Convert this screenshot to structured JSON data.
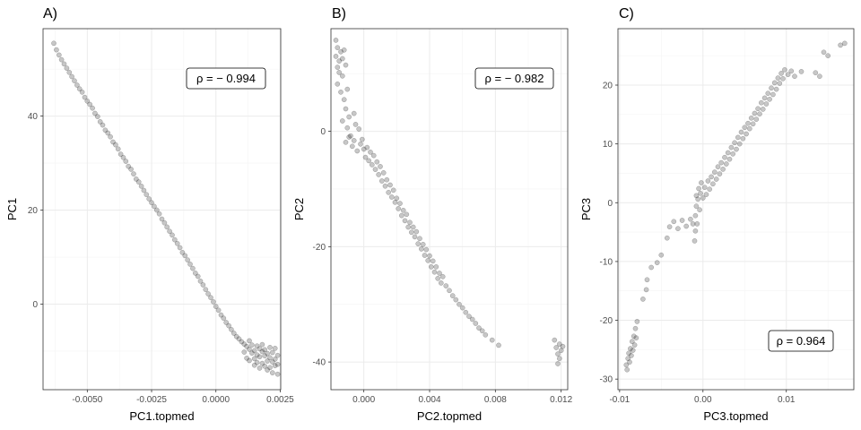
{
  "chart_data": [
    {
      "type": "scatter",
      "panel_label": "A)",
      "xlabel": "PC1.topmed",
      "ylabel": "PC1",
      "xlim": [
        -0.00672,
        0.00252
      ],
      "ylim": [
        -18.2,
        58.6
      ],
      "xticks": [
        -0.005,
        -0.0025,
        0.0,
        0.0025
      ],
      "xtick_labels": [
        "-0.0050",
        "-0.0025",
        "0.0000",
        "0.0025"
      ],
      "yticks": [
        0,
        20,
        40
      ],
      "ytick_labels": [
        "0",
        "20",
        "40"
      ],
      "grid": true,
      "annotation": "ρ = − 0.994",
      "annotation_position": "top-right",
      "points": [
        [
          -0.0063,
          55.5
        ],
        [
          -0.0062,
          54.1
        ],
        [
          -0.0061,
          53.0
        ],
        [
          -0.006,
          52.0
        ],
        [
          -0.0059,
          51.1
        ],
        [
          -0.0058,
          50.2
        ],
        [
          -0.0057,
          49.3
        ],
        [
          -0.0056,
          48.4
        ],
        [
          -0.0055,
          47.5
        ],
        [
          -0.0054,
          46.6
        ],
        [
          -0.0053,
          45.8
        ],
        [
          -0.0052,
          45.1
        ],
        [
          -0.0051,
          44.0
        ],
        [
          -0.005,
          43.2
        ],
        [
          -0.0049,
          42.5
        ],
        [
          -0.0048,
          41.7
        ],
        [
          -0.0047,
          40.6
        ],
        [
          -0.0046,
          39.9
        ],
        [
          -0.0045,
          38.8
        ],
        [
          -0.0044,
          38.1
        ],
        [
          -0.0043,
          37.0
        ],
        [
          -0.0042,
          36.4
        ],
        [
          -0.0041,
          35.6
        ],
        [
          -0.004,
          34.5
        ],
        [
          -0.0039,
          33.9
        ],
        [
          -0.0038,
          33.0
        ],
        [
          -0.0037,
          31.9
        ],
        [
          -0.0036,
          31.2
        ],
        [
          -0.0035,
          30.4
        ],
        [
          -0.0034,
          29.3
        ],
        [
          -0.0033,
          28.7
        ],
        [
          -0.0032,
          27.7
        ],
        [
          -0.0031,
          26.6
        ],
        [
          -0.003,
          26.0
        ],
        [
          -0.0029,
          25.1
        ],
        [
          -0.0028,
          24.2
        ],
        [
          -0.0027,
          23.3
        ],
        [
          -0.0026,
          22.4
        ],
        [
          -0.0025,
          21.6
        ],
        [
          -0.0024,
          20.8
        ],
        [
          -0.0023,
          20.0
        ],
        [
          -0.0022,
          19.2
        ],
        [
          -0.0021,
          18.1
        ],
        [
          -0.002,
          17.3
        ],
        [
          -0.0019,
          16.4
        ],
        [
          -0.0018,
          15.5
        ],
        [
          -0.0017,
          14.7
        ],
        [
          -0.0016,
          13.7
        ],
        [
          -0.0015,
          12.9
        ],
        [
          -0.0014,
          12.0
        ],
        [
          -0.0013,
          11.0
        ],
        [
          -0.0012,
          10.3
        ],
        [
          -0.0011,
          9.4
        ],
        [
          -0.001,
          8.5
        ],
        [
          -0.0009,
          7.6
        ],
        [
          -0.0008,
          6.6
        ],
        [
          -0.0007,
          5.9
        ],
        [
          -0.0006,
          4.9
        ],
        [
          -0.0005,
          4.1
        ],
        [
          -0.0004,
          3.1
        ],
        [
          -0.0003,
          2.2
        ],
        [
          -0.0002,
          1.4
        ],
        [
          -0.0001,
          0.5
        ],
        [
          0.0,
          -0.5
        ],
        [
          0.0001,
          -1.3
        ],
        [
          0.0002,
          -2.3
        ],
        [
          0.0003,
          -3.0
        ],
        [
          0.0004,
          -3.9
        ],
        [
          0.0005,
          -4.6
        ],
        [
          0.0006,
          -5.4
        ],
        [
          0.0007,
          -6.2
        ],
        [
          0.0008,
          -6.9
        ],
        [
          0.0009,
          -7.4
        ],
        [
          0.001,
          -8.0
        ],
        [
          0.0011,
          -8.5
        ],
        [
          0.0011,
          -10.2
        ],
        [
          0.0012,
          -9.0
        ],
        [
          0.0012,
          -11.5
        ],
        [
          0.0013,
          -7.8
        ],
        [
          0.0013,
          -9.6
        ],
        [
          0.0013,
          -12.0
        ],
        [
          0.0014,
          -10.4
        ],
        [
          0.0014,
          -8.7
        ],
        [
          0.0015,
          -11.6
        ],
        [
          0.0015,
          -9.9
        ],
        [
          0.0015,
          -13.0
        ],
        [
          0.0016,
          -10.8
        ],
        [
          0.0016,
          -8.9
        ],
        [
          0.0016,
          -12.4
        ],
        [
          0.0017,
          -9.5
        ],
        [
          0.0017,
          -11.2
        ],
        [
          0.0017,
          -13.6
        ],
        [
          0.0018,
          -10.1
        ],
        [
          0.0018,
          -12.6
        ],
        [
          0.0018,
          -8.6
        ],
        [
          0.0019,
          -11.0
        ],
        [
          0.0019,
          -13.2
        ],
        [
          0.0019,
          -9.7
        ],
        [
          0.002,
          -12.1
        ],
        [
          0.002,
          -10.5
        ],
        [
          0.002,
          -14.0
        ],
        [
          0.0021,
          -11.4
        ],
        [
          0.0021,
          -9.2
        ],
        [
          0.0021,
          -13.5
        ],
        [
          0.0022,
          -12.3
        ],
        [
          0.0022,
          -10.3
        ],
        [
          0.0022,
          -14.6
        ],
        [
          0.0023,
          -11.7
        ],
        [
          0.0023,
          -13.1
        ],
        [
          0.0023,
          -9.4
        ],
        [
          0.0024,
          -12.8
        ],
        [
          0.0024,
          -10.9
        ],
        [
          0.0024,
          -14.9
        ]
      ]
    },
    {
      "type": "scatter",
      "panel_label": "B)",
      "xlabel": "PC2.topmed",
      "ylabel": "PC2",
      "xlim": [
        -0.002,
        0.0124
      ],
      "ylim": [
        -44.8,
        17.8
      ],
      "xticks": [
        0.0,
        0.004,
        0.008,
        0.012
      ],
      "xtick_labels": [
        "0.000",
        "0.004",
        "0.008",
        "0.012"
      ],
      "yticks": [
        -40,
        -20,
        0
      ],
      "ytick_labels": [
        "-40",
        "-20",
        "0"
      ],
      "grid": true,
      "annotation": "ρ = − 0.982",
      "annotation_position": "top-right",
      "points": [
        [
          -0.0017,
          15.8
        ],
        [
          -0.0016,
          14.5
        ],
        [
          -0.0017,
          13.0
        ],
        [
          -0.0015,
          12.2
        ],
        [
          -0.0016,
          11.1
        ],
        [
          -0.0014,
          13.8
        ],
        [
          -0.0013,
          12.6
        ],
        [
          -0.0015,
          10.2
        ],
        [
          -0.0012,
          14.1
        ],
        [
          -0.0011,
          11.5
        ],
        [
          -0.0013,
          9.6
        ],
        [
          -0.0016,
          8.2
        ],
        [
          -0.0014,
          6.8
        ],
        [
          -0.0012,
          5.5
        ],
        [
          -0.001,
          7.3
        ],
        [
          -0.0011,
          3.9
        ],
        [
          -0.0009,
          2.5
        ],
        [
          -0.0013,
          1.8
        ],
        [
          -0.001,
          0.6
        ],
        [
          -0.0008,
          -0.8
        ],
        [
          -0.0011,
          -1.9
        ],
        [
          -0.0007,
          -2.6
        ],
        [
          -0.0009,
          -1.0
        ],
        [
          -0.0006,
          3.1
        ],
        [
          -0.0005,
          1.2
        ],
        [
          -0.0006,
          -1.6
        ],
        [
          -0.0004,
          -3.4
        ],
        [
          -0.0003,
          0.4
        ],
        [
          -0.0002,
          -2.2
        ],
        [
          -0.0001,
          -1.4
        ],
        [
          0.0,
          -3.1
        ],
        [
          0.0001,
          -4.5
        ],
        [
          0.0002,
          -2.8
        ],
        [
          0.0003,
          -5.1
        ],
        [
          0.0004,
          -3.6
        ],
        [
          0.0005,
          -5.8
        ],
        [
          0.0006,
          -4.2
        ],
        [
          0.0007,
          -6.6
        ],
        [
          0.0008,
          -5.3
        ],
        [
          0.0009,
          -7.5
        ],
        [
          0.001,
          -6.1
        ],
        [
          0.0011,
          -8.6
        ],
        [
          0.0012,
          -7.2
        ],
        [
          0.0013,
          -9.5
        ],
        [
          0.0014,
          -8.4
        ],
        [
          0.0015,
          -10.6
        ],
        [
          0.0016,
          -9.3
        ],
        [
          0.0017,
          -11.4
        ],
        [
          0.0018,
          -10.2
        ],
        [
          0.0019,
          -12.3
        ],
        [
          0.002,
          -11.6
        ],
        [
          0.0021,
          -13.4
        ],
        [
          0.0022,
          -12.5
        ],
        [
          0.0023,
          -14.6
        ],
        [
          0.0024,
          -13.7
        ],
        [
          0.0025,
          -15.5
        ],
        [
          0.0026,
          -14.4
        ],
        [
          0.0027,
          -16.6
        ],
        [
          0.0028,
          -15.8
        ],
        [
          0.0029,
          -17.5
        ],
        [
          0.003,
          -16.6
        ],
        [
          0.0031,
          -18.3
        ],
        [
          0.0032,
          -17.4
        ],
        [
          0.0033,
          -19.5
        ],
        [
          0.0034,
          -18.6
        ],
        [
          0.0035,
          -20.4
        ],
        [
          0.0036,
          -19.6
        ],
        [
          0.0037,
          -21.5
        ],
        [
          0.0038,
          -20.5
        ],
        [
          0.0039,
          -22.4
        ],
        [
          0.004,
          -21.6
        ],
        [
          0.0041,
          -23.5
        ],
        [
          0.0042,
          -22.5
        ],
        [
          0.0043,
          -24.4
        ],
        [
          0.0044,
          -23.5
        ],
        [
          0.0045,
          -25.5
        ],
        [
          0.0046,
          -24.6
        ],
        [
          0.0047,
          -26.3
        ],
        [
          0.0048,
          -25.2
        ],
        [
          0.005,
          -26.8
        ],
        [
          0.0052,
          -27.6
        ],
        [
          0.0054,
          -28.5
        ],
        [
          0.0056,
          -29.2
        ],
        [
          0.0058,
          -30.0
        ],
        [
          0.006,
          -30.6
        ],
        [
          0.0062,
          -31.4
        ],
        [
          0.0064,
          -32.1
        ],
        [
          0.0066,
          -32.6
        ],
        [
          0.0068,
          -33.3
        ],
        [
          0.007,
          -34.1
        ],
        [
          0.0072,
          -34.6
        ],
        [
          0.0074,
          -35.3
        ],
        [
          0.0078,
          -36.2
        ],
        [
          0.0082,
          -37.1
        ],
        [
          0.0116,
          -36.2
        ],
        [
          0.0117,
          -37.5
        ],
        [
          0.0118,
          -38.6
        ],
        [
          0.0119,
          -36.9
        ],
        [
          0.0119,
          -39.4
        ],
        [
          0.012,
          -38.0
        ],
        [
          0.0118,
          -40.3
        ],
        [
          0.0121,
          -37.3
        ]
      ]
    },
    {
      "type": "scatter",
      "panel_label": "C)",
      "xlabel": "PC3.topmed",
      "ylabel": "PC3",
      "xlim": [
        -0.0102,
        0.0181
      ],
      "ylim": [
        -31.8,
        29.6
      ],
      "xticks": [
        -0.01,
        0.0,
        0.01
      ],
      "xtick_labels": [
        "-0.01",
        "0.00",
        "0.01"
      ],
      "yticks": [
        -30,
        -20,
        -10,
        0,
        10,
        20
      ],
      "ytick_labels": [
        "-30",
        "-20",
        "-10",
        "0",
        "10",
        "20"
      ],
      "grid": true,
      "annotation": "ρ = 0.964",
      "annotation_position": "bottom-right",
      "points": [
        [
          -0.0092,
          -27.6
        ],
        [
          -0.009,
          -26.5
        ],
        [
          -0.0091,
          -28.4
        ],
        [
          -0.0089,
          -25.6
        ],
        [
          -0.0088,
          -27.1
        ],
        [
          -0.0087,
          -24.8
        ],
        [
          -0.0086,
          -26.0
        ],
        [
          -0.0085,
          -23.6
        ],
        [
          -0.0084,
          -25.1
        ],
        [
          -0.0083,
          -22.7
        ],
        [
          -0.0082,
          -24.2
        ],
        [
          -0.0081,
          -21.4
        ],
        [
          -0.008,
          -23.0
        ],
        [
          -0.0079,
          -20.2
        ],
        [
          -0.0072,
          -16.4
        ],
        [
          -0.0068,
          -14.8
        ],
        [
          -0.0067,
          -13.1
        ],
        [
          -0.0062,
          -11.0
        ],
        [
          -0.0055,
          -10.2
        ],
        [
          -0.005,
          -8.9
        ],
        [
          -0.0043,
          -6.0
        ],
        [
          -0.004,
          -4.1
        ],
        [
          -0.0035,
          -3.2
        ],
        [
          -0.003,
          -4.4
        ],
        [
          -0.0025,
          -3.0
        ],
        [
          -0.002,
          -4.0
        ],
        [
          -0.0015,
          -2.8
        ],
        [
          -0.0012,
          -3.6
        ],
        [
          -0.001,
          -6.5
        ],
        [
          -0.0009,
          -4.8
        ],
        [
          -0.0009,
          -2.2
        ],
        [
          -0.0008,
          -0.6
        ],
        [
          -0.0008,
          1.2
        ],
        [
          -0.0007,
          -3.6
        ],
        [
          -0.0006,
          0.6
        ],
        [
          -0.0005,
          2.4
        ],
        [
          -0.0004,
          -1.2
        ],
        [
          -0.0003,
          1.6
        ],
        [
          -0.0002,
          3.4
        ],
        [
          0.0,
          0.8
        ],
        [
          0.0002,
          2.6
        ],
        [
          0.0004,
          1.4
        ],
        [
          0.0006,
          3.7
        ],
        [
          0.0008,
          2.3
        ],
        [
          0.001,
          4.4
        ],
        [
          0.0012,
          3.2
        ],
        [
          0.0014,
          5.2
        ],
        [
          0.0016,
          4.0
        ],
        [
          0.0018,
          6.1
        ],
        [
          0.002,
          4.9
        ],
        [
          0.0022,
          6.8
        ],
        [
          0.0024,
          5.7
        ],
        [
          0.0026,
          7.7
        ],
        [
          0.0028,
          6.6
        ],
        [
          0.003,
          8.5
        ],
        [
          0.0032,
          7.4
        ],
        [
          0.0034,
          9.4
        ],
        [
          0.0036,
          8.3
        ],
        [
          0.0038,
          10.2
        ],
        [
          0.004,
          9.1
        ],
        [
          0.0042,
          11.1
        ],
        [
          0.0044,
          10.0
        ],
        [
          0.0046,
          12.0
        ],
        [
          0.0048,
          10.9
        ],
        [
          0.005,
          12.8
        ],
        [
          0.0052,
          11.7
        ],
        [
          0.0054,
          13.5
        ],
        [
          0.0056,
          12.6
        ],
        [
          0.0058,
          14.4
        ],
        [
          0.006,
          13.4
        ],
        [
          0.0062,
          15.2
        ],
        [
          0.0064,
          14.2
        ],
        [
          0.0066,
          16.0
        ],
        [
          0.0068,
          15.1
        ],
        [
          0.007,
          17.0
        ],
        [
          0.0072,
          15.9
        ],
        [
          0.0074,
          17.8
        ],
        [
          0.0076,
          16.8
        ],
        [
          0.0078,
          18.6
        ],
        [
          0.008,
          17.6
        ],
        [
          0.0082,
          19.5
        ],
        [
          0.0084,
          18.4
        ],
        [
          0.0086,
          20.4
        ],
        [
          0.0088,
          19.3
        ],
        [
          0.009,
          21.2
        ],
        [
          0.0092,
          20.3
        ],
        [
          0.0094,
          22.0
        ],
        [
          0.0096,
          21.1
        ],
        [
          0.0098,
          22.6
        ],
        [
          0.0102,
          21.8
        ],
        [
          0.0106,
          22.4
        ],
        [
          0.011,
          21.5
        ],
        [
          0.0118,
          22.3
        ],
        [
          0.0135,
          22.1
        ],
        [
          0.014,
          21.5
        ],
        [
          0.0145,
          25.6
        ],
        [
          0.015,
          25.0
        ],
        [
          0.0165,
          26.8
        ],
        [
          0.017,
          27.1
        ]
      ]
    }
  ]
}
